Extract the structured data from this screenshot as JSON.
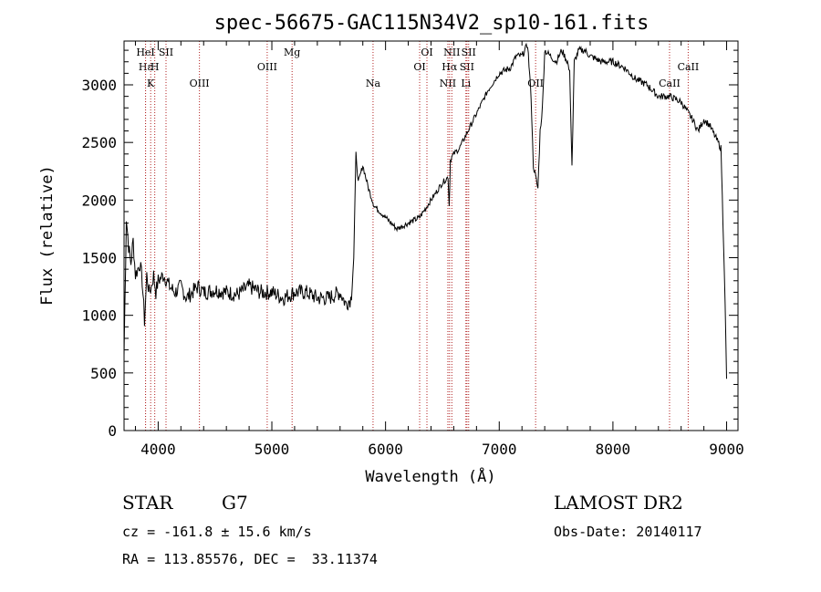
{
  "chart_data": {
    "type": "line",
    "title": "spec-56675-GAC115N34V2_sp10-161.fits",
    "xlabel": "Wavelength (Å)",
    "ylabel": "Flux (relative)",
    "xlim": [
      3700,
      9100
    ],
    "ylim": [
      0,
      3380
    ],
    "xticks": [
      4000,
      5000,
      6000,
      7000,
      8000,
      9000
    ],
    "yticks": [
      0,
      500,
      1000,
      1500,
      2000,
      2500,
      3000
    ],
    "grid": false,
    "series": [
      {
        "x": [
          3700,
          3720,
          3740,
          3760,
          3780,
          3800,
          3820,
          3840,
          3860,
          3880,
          3900,
          3920,
          3940,
          3960,
          3980,
          4000,
          4050,
          4100,
          4150,
          4200,
          4250,
          4300,
          4350,
          4400,
          4500,
          4600,
          4700,
          4800,
          4900,
          5000,
          5100,
          5200,
          5300,
          5400,
          5500,
          5600,
          5650,
          5700,
          5720,
          5740,
          5760,
          5800,
          5850,
          5900,
          6000,
          6100,
          6200,
          6300,
          6400,
          6500,
          6550,
          6560,
          6570,
          6600,
          6650,
          6700,
          6750,
          6800,
          6900,
          7000,
          7100,
          7150,
          7200,
          7250,
          7280,
          7300,
          7320,
          7340,
          7360,
          7380,
          7400,
          7450,
          7500,
          7550,
          7600,
          7620,
          7640,
          7660,
          7700,
          7750,
          7800,
          7900,
          8000,
          8100,
          8200,
          8300,
          8400,
          8500,
          8600,
          8700,
          8750,
          8800,
          8850,
          8900,
          8950,
          8980,
          9000
        ],
        "y": [
          650,
          1850,
          1600,
          1450,
          1650,
          1350,
          1400,
          1450,
          1300,
          950,
          1350,
          1200,
          1250,
          1350,
          1200,
          1300,
          1350,
          1250,
          1200,
          1250,
          1150,
          1200,
          1250,
          1200,
          1220,
          1200,
          1180,
          1250,
          1200,
          1200,
          1150,
          1200,
          1200,
          1150,
          1150,
          1200,
          1100,
          1150,
          1500,
          2400,
          2150,
          2300,
          2100,
          1950,
          1850,
          1750,
          1800,
          1850,
          2000,
          2150,
          2200,
          1950,
          2350,
          2400,
          2450,
          2550,
          2650,
          2750,
          2950,
          3100,
          3150,
          3250,
          3250,
          3350,
          2900,
          2300,
          2200,
          2100,
          2600,
          2800,
          3300,
          3250,
          3200,
          3300,
          3200,
          3100,
          2300,
          3200,
          3300,
          3300,
          3250,
          3200,
          3200,
          3150,
          3050,
          3000,
          2900,
          2900,
          2850,
          2700,
          2600,
          2700,
          2650,
          2550,
          2450,
          1400,
          450
        ]
      }
    ],
    "line_markers": [
      {
        "wl": 3889,
        "label": "Hε",
        "row": 2
      },
      {
        "wl": 3889,
        "label": "HeI",
        "row": 1
      },
      {
        "wl": 3934,
        "label": "K",
        "row": 3
      },
      {
        "wl": 3970,
        "label": "H",
        "row": 2
      },
      {
        "wl": 4069,
        "label": "SII",
        "row": 1
      },
      {
        "wl": 4363,
        "label": "OIII",
        "row": 3
      },
      {
        "wl": 4959,
        "label": "OIII",
        "row": 2
      },
      {
        "wl": 5178,
        "label": "Mg",
        "row": 1
      },
      {
        "wl": 5890,
        "label": "Na",
        "row": 3
      },
      {
        "wl": 6300,
        "label": "OI",
        "row": 2
      },
      {
        "wl": 6364,
        "label": "OI",
        "row": 1
      },
      {
        "wl": 6548,
        "label": "NII",
        "row": 3
      },
      {
        "wl": 6563,
        "label": "Hα",
        "row": 2
      },
      {
        "wl": 6583,
        "label": "NII",
        "row": 1
      },
      {
        "wl": 6707,
        "label": "Li",
        "row": 3
      },
      {
        "wl": 6716,
        "label": "SII",
        "row": 2
      },
      {
        "wl": 6731,
        "label": "SII",
        "row": 1
      },
      {
        "wl": 7320,
        "label": "OII",
        "row": 3
      },
      {
        "wl": 8498,
        "label": "CaII",
        "row": 3
      },
      {
        "wl": 8662,
        "label": "CaII",
        "row": 2
      }
    ]
  },
  "footer": {
    "object_class": "STAR",
    "subclass": "G7",
    "survey": "LAMOST DR2",
    "cz": "cz = -161.8 ± 15.6 km/s",
    "obs_date": "Obs-Date: 20140117",
    "coords": "RA = 113.85576, DEC =  33.11374"
  }
}
